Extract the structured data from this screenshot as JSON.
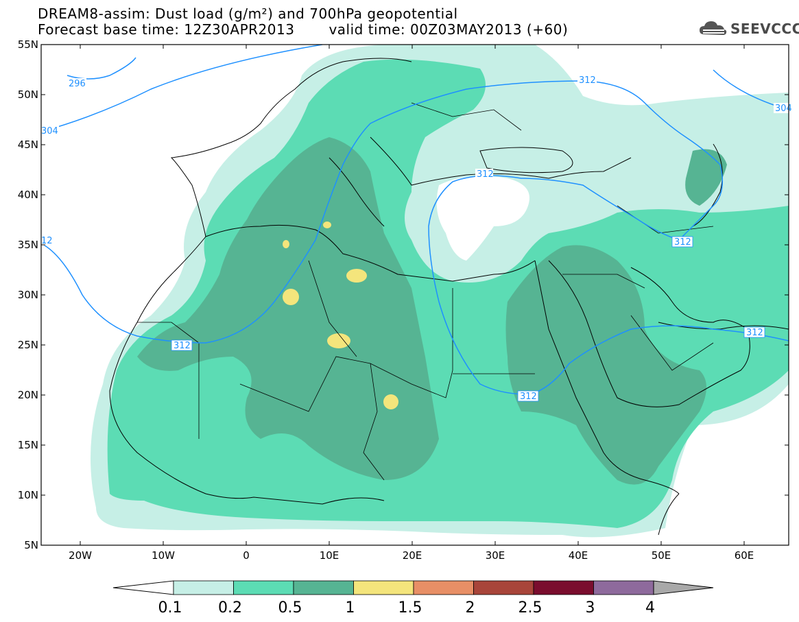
{
  "header": {
    "title_line1": "DREAM8-assim: Dust load (g/m²) and 700hPa geopotential",
    "base_time": "Forecast base time: 12Z30APR2013",
    "valid_time": "valid time: 00Z03MAY2013 (+60)"
  },
  "logo": {
    "text": "SEEVCCC",
    "icon": "cloud-icon"
  },
  "map": {
    "lat_labels": [
      "55N",
      "50N",
      "45N",
      "40N",
      "35N",
      "30N",
      "25N",
      "20N",
      "15N",
      "10N",
      "5N"
    ],
    "lon_labels": [
      "20W",
      "10W",
      "0",
      "10E",
      "20E",
      "30E",
      "40E",
      "50E",
      "60E"
    ],
    "contour_labels": [
      "296",
      "304",
      "312",
      "312",
      "312",
      "312",
      "312",
      "312",
      "12",
      "304"
    ],
    "colors": {
      "land_line": "#000000",
      "contour": "#1e90ff",
      "c01": "#c6efe6",
      "c02": "#5cdcb4",
      "c05": "#56b493",
      "c1": "#f4e57c",
      "c15": "#e88f66",
      "c2": "#a8453a",
      "c25": "#7a0d2e",
      "c3": "#8e6a9c",
      "c4": "#a9a9a9"
    }
  },
  "colorbar": {
    "labels": [
      "0.1",
      "0.2",
      "0.5",
      "1",
      "1.5",
      "2",
      "2.5",
      "3",
      "4"
    ],
    "colors": [
      "#c6efe6",
      "#5cdcb4",
      "#56b493",
      "#f4e57c",
      "#e88f66",
      "#a8453a",
      "#7a0d2e",
      "#8e6a9c"
    ],
    "over_color": "#a9a9a9"
  }
}
